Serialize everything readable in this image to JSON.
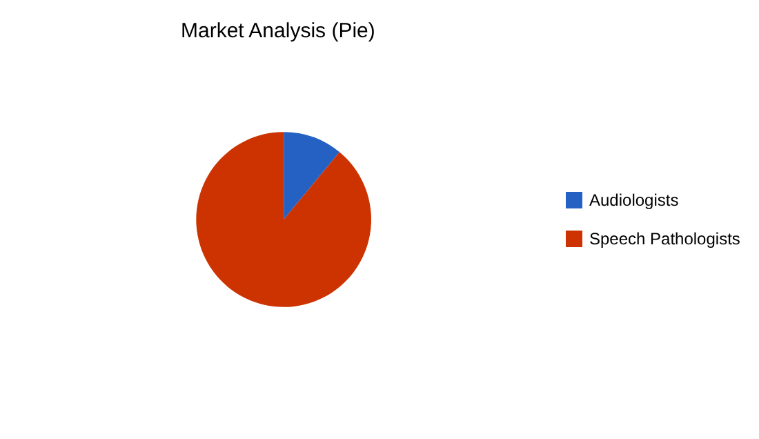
{
  "chart_data": {
    "type": "pie",
    "title": "Market Analysis (Pie)",
    "categories": [
      "Audiologists",
      "Speech Pathologists"
    ],
    "values": [
      11,
      89
    ],
    "colors": [
      "#2461c3",
      "#cc3300"
    ],
    "legend": "right"
  }
}
